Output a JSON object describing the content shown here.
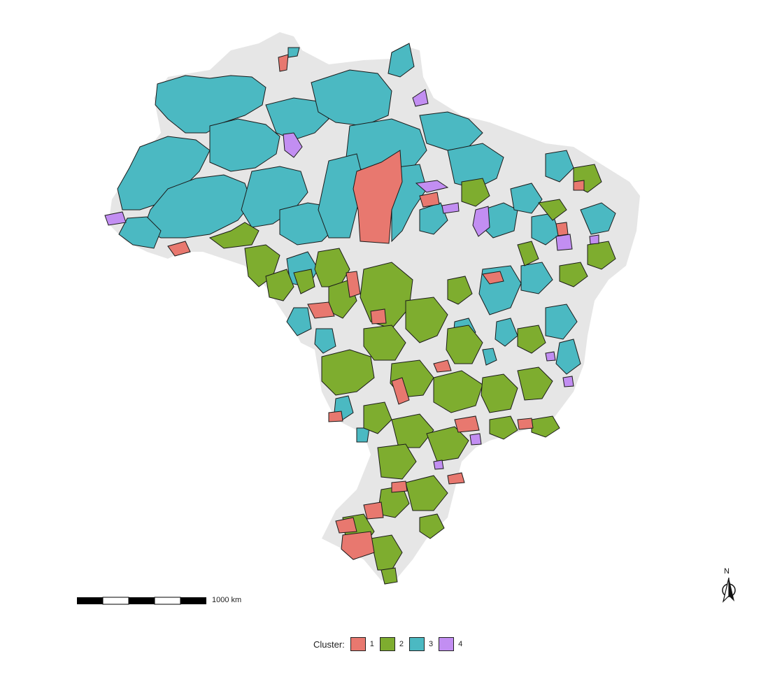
{
  "legend": {
    "title": "Cluster:",
    "items": [
      {
        "label": "1",
        "color": "#e8786f"
      },
      {
        "label": "2",
        "color": "#7ead2f"
      },
      {
        "label": "3",
        "color": "#4bb9c2"
      },
      {
        "label": "4",
        "color": "#c28ef2"
      }
    ]
  },
  "scale_bar": {
    "label": "1000 km"
  },
  "north_arrow": {
    "label": "N"
  },
  "colors": {
    "background_land": "#e6e6e6",
    "border": "#1a1a1a"
  }
}
